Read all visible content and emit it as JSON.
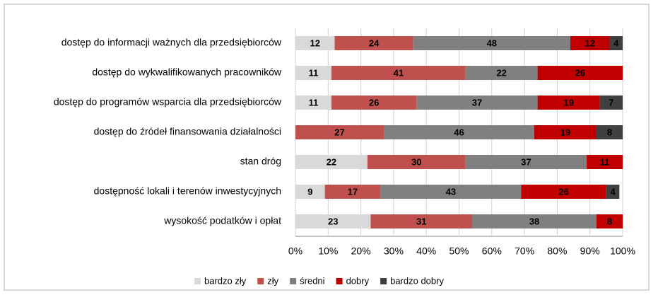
{
  "chart_data": {
    "type": "stacked_bar_horizontal",
    "categories": [
      "dostęp do informacji ważnych dla przedsiębiorców",
      "dostęp do wykwalifikowanych pracowników",
      "dostęp do programów wsparcia dla przedsiębiorców",
      "dostęp do źródeł finansowania działalności",
      "stan dróg",
      "dostępność lokali i terenów inwestycyjnych",
      "wysokość podatków i opłat"
    ],
    "series": [
      {
        "name": "bardzo zły",
        "color": "#d9d9d9",
        "values": [
          12,
          11,
          11,
          0,
          22,
          9,
          23
        ]
      },
      {
        "name": "zły",
        "color": "#c0504d",
        "values": [
          24,
          41,
          26,
          27,
          30,
          17,
          31
        ]
      },
      {
        "name": "średni",
        "color": "#808080",
        "values": [
          48,
          22,
          37,
          46,
          37,
          43,
          38
        ]
      },
      {
        "name": "dobry",
        "color": "#c00000",
        "values": [
          12,
          26,
          19,
          19,
          11,
          26,
          8
        ]
      },
      {
        "name": "bardzo dobry",
        "color": "#404040",
        "values": [
          4,
          0,
          7,
          8,
          0,
          4,
          0
        ]
      }
    ],
    "xlim": [
      0,
      100
    ],
    "xticks": [
      {
        "value": 0,
        "label": "0%"
      },
      {
        "value": 10,
        "label": "10%"
      },
      {
        "value": 20,
        "label": "20%"
      },
      {
        "value": 30,
        "label": "30%"
      },
      {
        "value": 40,
        "label": "40%"
      },
      {
        "value": 50,
        "label": "50%"
      },
      {
        "value": 60,
        "label": "60%"
      },
      {
        "value": 70,
        "label": "70%"
      },
      {
        "value": 80,
        "label": "80%"
      },
      {
        "value": 90,
        "label": "90%"
      },
      {
        "value": 100,
        "label": "100%"
      }
    ],
    "grid": true,
    "legend": "bottom"
  }
}
